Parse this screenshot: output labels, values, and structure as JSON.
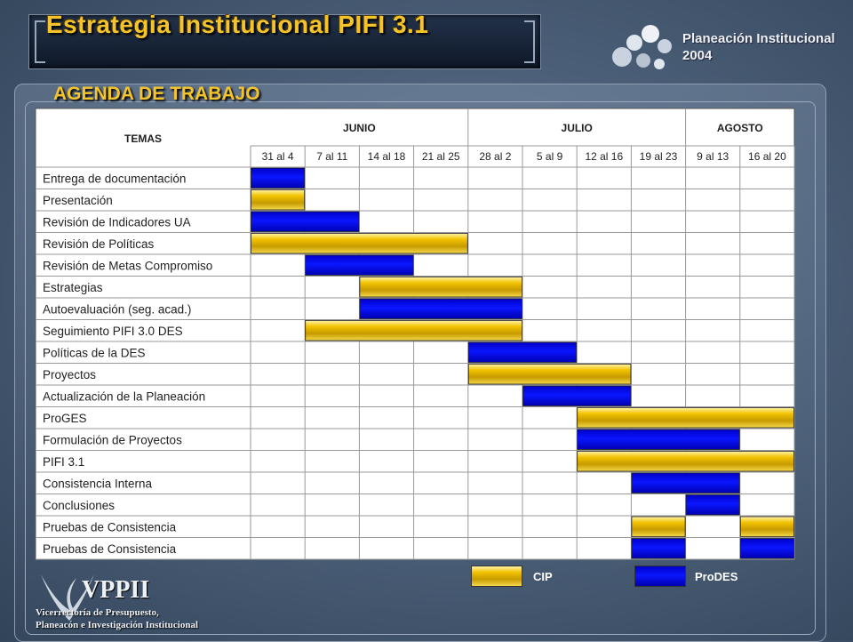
{
  "header": {
    "title": "Estrategia Institucional PIFI 3.1",
    "org_line1": "Planeación Institucional",
    "org_line2": "2004"
  },
  "agenda_label": "AGENDA DE TRABAJO",
  "table": {
    "temas_label": "TEMAS",
    "months": [
      {
        "name": "JUNIO",
        "span": 4
      },
      {
        "name": "JULIO",
        "span": 4
      },
      {
        "name": "AGOSTO",
        "span": 2
      }
    ],
    "weeks": [
      "31 al 4",
      "7 al 11",
      "14 al 18",
      "21 al 25",
      "28 al 2",
      "5 al 9",
      "12 al 16",
      "19 al 23",
      "9 al 13",
      "16 al 20"
    ],
    "rows": [
      {
        "label": "Entrega de documentación",
        "bars": [
          {
            "type": "prodes",
            "start": 0,
            "end": 1
          }
        ]
      },
      {
        "label": "Presentación",
        "bars": [
          {
            "type": "cip",
            "start": 0,
            "end": 1
          }
        ]
      },
      {
        "label": "Revisión de Indicadores UA",
        "bars": [
          {
            "type": "prodes",
            "start": 0,
            "end": 2
          }
        ]
      },
      {
        "label": "Revisión de Políticas",
        "bars": [
          {
            "type": "cip",
            "start": 0,
            "end": 4
          }
        ]
      },
      {
        "label": "Revisión de Metas Compromiso",
        "bars": [
          {
            "type": "prodes",
            "start": 1,
            "end": 3
          }
        ]
      },
      {
        "label": "Estrategias",
        "bars": [
          {
            "type": "cip",
            "start": 2,
            "end": 5
          }
        ]
      },
      {
        "label": "Autoevaluación (seg. acad.)",
        "bars": [
          {
            "type": "prodes",
            "start": 2,
            "end": 5
          }
        ]
      },
      {
        "label": "Seguimiento PIFI 3.0 DES",
        "bars": [
          {
            "type": "cip",
            "start": 1,
            "end": 5
          }
        ]
      },
      {
        "label": "Políticas de la DES",
        "bars": [
          {
            "type": "prodes",
            "start": 4,
            "end": 6
          }
        ]
      },
      {
        "label": "Proyectos",
        "bars": [
          {
            "type": "cip",
            "start": 4,
            "end": 7
          }
        ]
      },
      {
        "label": "Actualización de la Planeación",
        "bars": [
          {
            "type": "prodes",
            "start": 5,
            "end": 7
          }
        ]
      },
      {
        "label": "ProGES",
        "bars": [
          {
            "type": "cip",
            "start": 6,
            "end": 10
          }
        ]
      },
      {
        "label": "Formulación de Proyectos",
        "bars": [
          {
            "type": "prodes",
            "start": 6,
            "end": 9
          }
        ]
      },
      {
        "label": "PIFI 3.1",
        "bars": [
          {
            "type": "cip",
            "start": 6,
            "end": 10
          }
        ]
      },
      {
        "label": "Consistencia Interna",
        "bars": [
          {
            "type": "prodes",
            "start": 7,
            "end": 9
          }
        ]
      },
      {
        "label": "Conclusiones",
        "bars": [
          {
            "type": "prodes",
            "start": 8,
            "end": 9
          }
        ]
      },
      {
        "label": "Pruebas de Consistencia",
        "bars": [
          {
            "type": "cip",
            "start": 7,
            "end": 8
          },
          {
            "type": "cip",
            "start": 9,
            "end": 10
          }
        ]
      },
      {
        "label": "Pruebas de Consistencia",
        "bars": [
          {
            "type": "prodes",
            "start": 7,
            "end": 8
          },
          {
            "type": "prodes",
            "start": 9,
            "end": 10
          }
        ]
      }
    ]
  },
  "legend": {
    "cip": "CIP",
    "prodes": "ProDES"
  },
  "footer": {
    "logo_text": "VPPII",
    "line1": "Vicerrectoría de Presupuesto,",
    "line2": "Planeacón e Investigación Institucional"
  },
  "colors": {
    "cip": "#f2c200",
    "prodes": "#0a16ff",
    "title": "#f4c42a"
  }
}
